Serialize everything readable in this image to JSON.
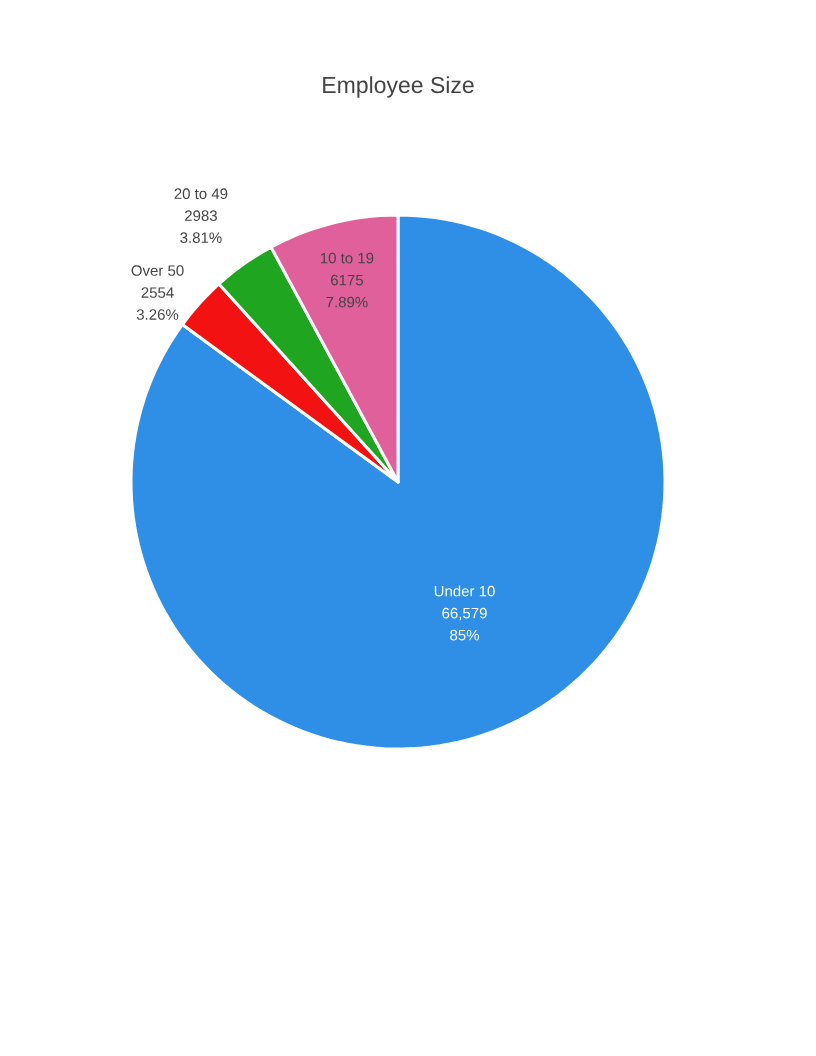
{
  "chart_data": {
    "type": "pie",
    "title": "Employee Size",
    "categories": [
      "Under 10",
      "Over 50",
      "20 to 49",
      "10 to 19"
    ],
    "values": [
      66579,
      2554,
      2983,
      6175
    ],
    "colors": [
      "#2f8fe6",
      "#f21212",
      "#20a520",
      "#e0609b"
    ],
    "value_labels": [
      "66,579",
      "2554",
      "2983",
      "6175"
    ],
    "annotations": [
      {
        "text": "85%",
        "x": "Under 10"
      },
      {
        "text": "3.26%",
        "x": "Over 50"
      },
      {
        "text": "3.81%",
        "x": "20 to 49"
      },
      {
        "text": "7.89%",
        "x": "10 to 19"
      }
    ]
  }
}
